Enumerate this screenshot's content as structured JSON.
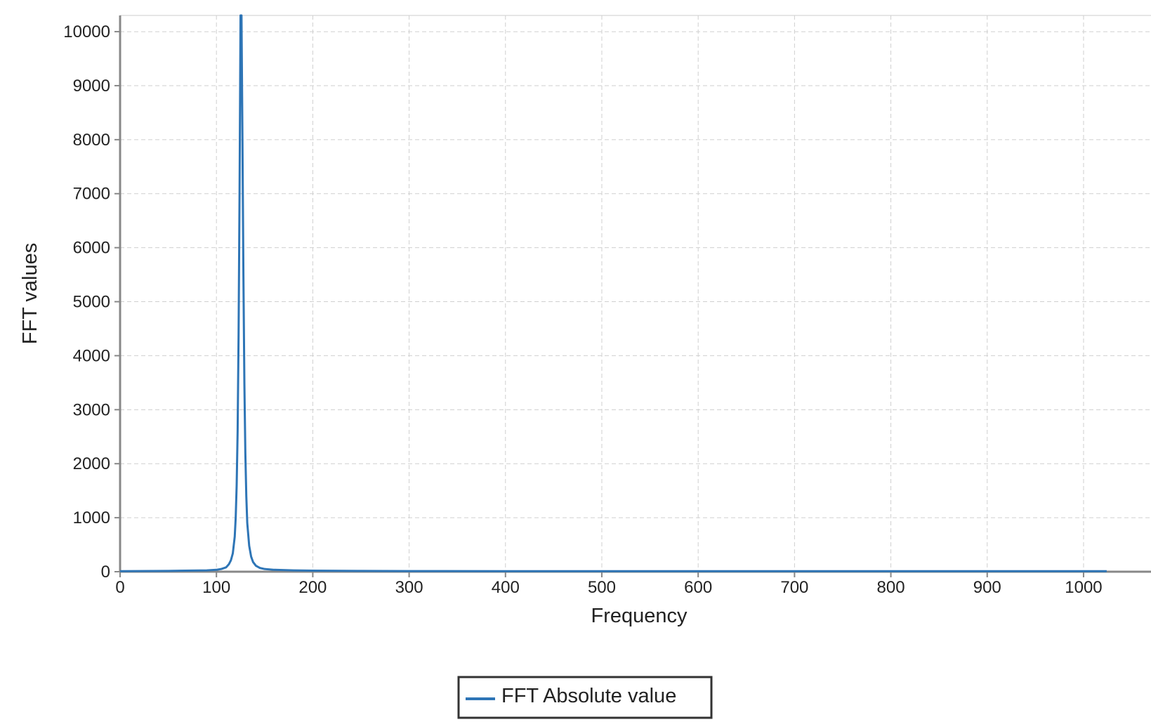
{
  "chart_data": {
    "type": "line",
    "title": "",
    "xlabel": "Frequency",
    "ylabel": "FFT values",
    "xlim": [
      0,
      1070
    ],
    "ylim": [
      0,
      10300
    ],
    "x_ticks": [
      0,
      100,
      200,
      300,
      400,
      500,
      600,
      700,
      800,
      900,
      1000
    ],
    "y_ticks": [
      0,
      1000,
      2000,
      3000,
      4000,
      5000,
      6000,
      7000,
      8000,
      9000,
      10000
    ],
    "grid": true,
    "legend_position": "bottom-center",
    "series": [
      {
        "name": "FFT Absolute value",
        "color": "#2e75b6",
        "x": [
          0,
          50,
          90,
          100,
          105,
          110,
          113,
          115,
          117,
          119,
          120,
          121,
          122,
          123,
          124,
          125,
          126,
          127,
          128,
          129,
          130,
          131,
          132,
          134,
          136,
          138,
          141,
          145,
          150,
          160,
          180,
          200,
          250,
          300,
          400,
          500,
          600,
          700,
          800,
          900,
          1000,
          1024
        ],
        "y": [
          10,
          15,
          25,
          35,
          50,
          80,
          140,
          210,
          340,
          650,
          1000,
          1600,
          2600,
          4400,
          7000,
          10300,
          10300,
          8000,
          5500,
          3500,
          2200,
          1400,
          900,
          480,
          280,
          180,
          110,
          70,
          50,
          35,
          25,
          20,
          15,
          12,
          10,
          10,
          10,
          10,
          10,
          10,
          10,
          10
        ]
      }
    ]
  }
}
